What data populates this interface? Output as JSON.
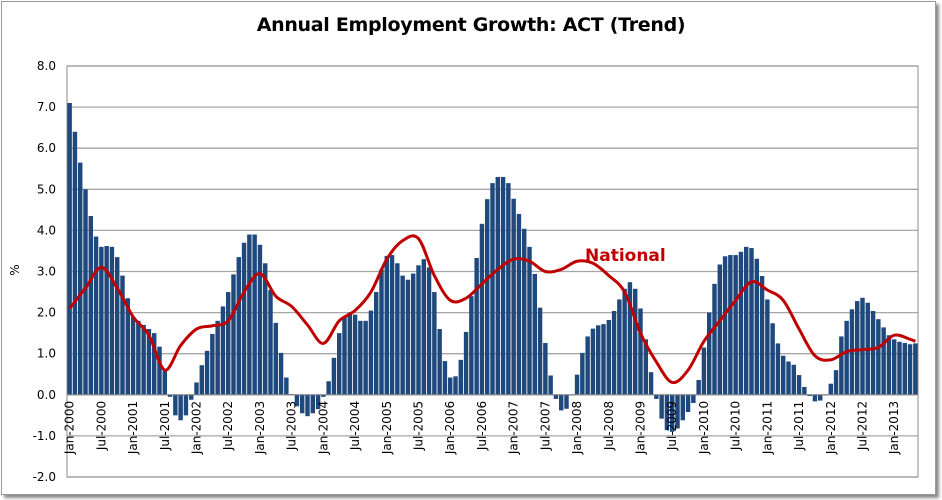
{
  "chart_data": {
    "type": "bar",
    "title": "Annual Employment Growth: ACT (Trend)",
    "xlabel": "",
    "ylabel": "%",
    "ylim": [
      -2.0,
      8.0
    ],
    "yticks": [
      "8.0",
      "7.0",
      "6.0",
      "5.0",
      "4.0",
      "3.0",
      "2.0",
      "1.0",
      "0.0",
      "-1.0",
      "-2.0"
    ],
    "xticks": [
      "Jan-2000",
      "Jul-2000",
      "Jan-2001",
      "Jul-2001",
      "Jan-2002",
      "Jul-2002",
      "Jan-2003",
      "Jul-2003",
      "Jan-2004",
      "Jul-2004",
      "Jan-2005",
      "Jul-2005",
      "Jan-2006",
      "Jul-2006",
      "Jan-2007",
      "Jul-2007",
      "Jan-2008",
      "Jul-2008",
      "Jan-2009",
      "Jul-2009",
      "Jan-2010",
      "Jul-2010",
      "Jan-2011",
      "Jul-2011",
      "Jan-2012",
      "Jul-2012",
      "Jan-2013"
    ],
    "grid": true,
    "bar_series": {
      "color": "#1f497d",
      "monthly_values_by_year": {
        "2000": [
          7.1,
          6.4,
          5.65,
          5.0,
          4.35,
          3.85,
          3.6,
          3.62,
          3.6,
          3.35,
          2.9,
          2.35
        ],
        "2001": [
          1.9,
          1.8,
          1.7,
          1.6,
          1.5,
          1.17,
          0.58,
          -0.05,
          -0.5,
          -0.62,
          -0.5,
          -0.12
        ],
        "2002": [
          0.3,
          0.72,
          1.07,
          1.48,
          1.8,
          2.15,
          2.5,
          2.93,
          3.35,
          3.7,
          3.9,
          3.9
        ],
        "2003": [
          3.65,
          3.2,
          2.55,
          1.75,
          1.02,
          0.42,
          0.02,
          -0.28,
          -0.45,
          -0.52,
          -0.45,
          -0.35
        ],
        "2004": [
          -0.05,
          0.33,
          0.9,
          1.5,
          1.9,
          2.0,
          1.95,
          1.8,
          1.8,
          2.05,
          2.5,
          3.05
        ],
        "2005": [
          3.38,
          3.4,
          3.2,
          2.9,
          2.8,
          2.95,
          3.15,
          3.3,
          3.1,
          2.5,
          1.6,
          0.82
        ],
        "2006": [
          0.42,
          0.45,
          0.85,
          1.53,
          2.4,
          3.33,
          4.16,
          4.76,
          5.15,
          5.3,
          5.3,
          5.15
        ],
        "2007": [
          4.77,
          4.4,
          4.04,
          3.6,
          2.94,
          2.12,
          1.26,
          0.47,
          -0.1,
          -0.38,
          -0.34,
          0.0
        ],
        "2008": [
          0.49,
          1.02,
          1.42,
          1.61,
          1.69,
          1.72,
          1.82,
          2.04,
          2.32,
          2.58,
          2.74,
          2.58
        ],
        "2009": [
          2.1,
          1.35,
          0.55,
          -0.1,
          -0.58,
          -0.86,
          -0.9,
          -0.82,
          -0.62,
          -0.42,
          -0.2,
          0.36
        ],
        "2010": [
          1.15,
          2.0,
          2.7,
          3.17,
          3.37,
          3.4,
          3.4,
          3.48,
          3.6,
          3.57,
          3.31,
          2.89
        ],
        "2011": [
          2.32,
          1.74,
          1.25,
          0.95,
          0.81,
          0.73,
          0.48,
          0.19,
          -0.03,
          -0.16,
          -0.14,
          0.0
        ],
        "2012": [
          0.27,
          0.6,
          1.42,
          1.8,
          2.08,
          2.28,
          2.36,
          2.24,
          2.04,
          1.84,
          1.64,
          1.45
        ],
        "2013": [
          1.35,
          1.29,
          1.26,
          1.23,
          1.25
        ]
      }
    },
    "line_series": {
      "name": "National",
      "color": "#c00000",
      "points": [
        [
          "Jan-2000",
          2.1
        ],
        [
          "Apr-2000",
          2.6
        ],
        [
          "Jul-2000",
          3.1
        ],
        [
          "Oct-2000",
          2.6
        ],
        [
          "Jan-2001",
          1.9
        ],
        [
          "Apr-2001",
          1.45
        ],
        [
          "Jul-2001",
          0.6
        ],
        [
          "Oct-2001",
          1.2
        ],
        [
          "Jan-2002",
          1.6
        ],
        [
          "Apr-2002",
          1.68
        ],
        [
          "Jul-2002",
          1.8
        ],
        [
          "Oct-2002",
          2.5
        ],
        [
          "Jan-2003",
          2.95
        ],
        [
          "Apr-2003",
          2.4
        ],
        [
          "Jul-2003",
          2.15
        ],
        [
          "Oct-2003",
          1.7
        ],
        [
          "Jan-2004",
          1.25
        ],
        [
          "Apr-2004",
          1.8
        ],
        [
          "Jul-2004",
          2.05
        ],
        [
          "Oct-2004",
          2.5
        ],
        [
          "Jan-2005",
          3.3
        ],
        [
          "Apr-2005",
          3.75
        ],
        [
          "Jul-2005",
          3.8
        ],
        [
          "Oct-2005",
          2.9
        ],
        [
          "Jan-2006",
          2.3
        ],
        [
          "Apr-2006",
          2.35
        ],
        [
          "Jul-2006",
          2.7
        ],
        [
          "Oct-2006",
          3.05
        ],
        [
          "Jan-2007",
          3.3
        ],
        [
          "Apr-2007",
          3.25
        ],
        [
          "Jul-2007",
          3.0
        ],
        [
          "Oct-2007",
          3.05
        ],
        [
          "Jan-2008",
          3.25
        ],
        [
          "Apr-2008",
          3.2
        ],
        [
          "Jul-2008",
          2.9
        ],
        [
          "Oct-2008",
          2.5
        ],
        [
          "Jan-2009",
          1.5
        ],
        [
          "Apr-2009",
          0.8
        ],
        [
          "Jul-2009",
          0.3
        ],
        [
          "Oct-2009",
          0.6
        ],
        [
          "Jan-2010",
          1.3
        ],
        [
          "Apr-2010",
          1.8
        ],
        [
          "Jul-2010",
          2.3
        ],
        [
          "Oct-2010",
          2.75
        ],
        [
          "Jan-2011",
          2.55
        ],
        [
          "Apr-2011",
          2.3
        ],
        [
          "Jul-2011",
          1.6
        ],
        [
          "Oct-2011",
          0.95
        ],
        [
          "Jan-2012",
          0.85
        ],
        [
          "Apr-2012",
          1.05
        ],
        [
          "Jul-2012",
          1.1
        ],
        [
          "Oct-2012",
          1.15
        ],
        [
          "Jan-2013",
          1.45
        ],
        [
          "Apr-2013",
          1.35
        ],
        [
          "May-2013",
          1.3
        ]
      ]
    },
    "annotations": [
      "National"
    ]
  }
}
